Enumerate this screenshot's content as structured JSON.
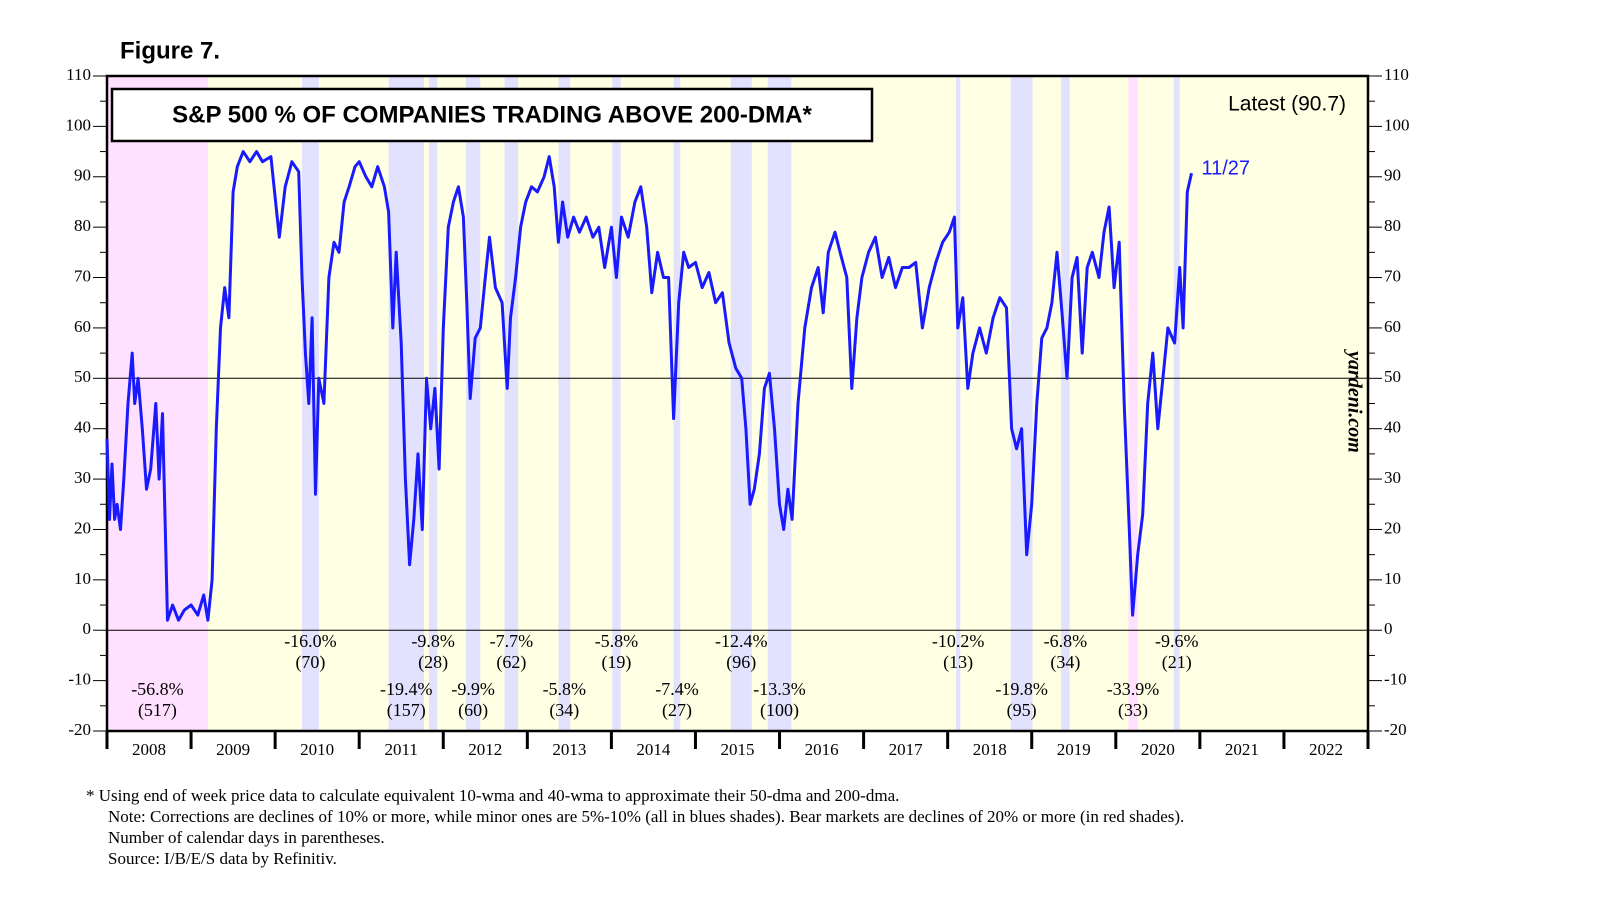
{
  "chart_data": {
    "type": "line",
    "figure_label": "Figure 7.",
    "title": "S&P 500 % OF COMPANIES TRADING ABOVE 200-DMA*",
    "latest_label": "Latest (90.7)",
    "end_label": "11/27",
    "watermark": "yardeni.com",
    "color": "#1a1aff",
    "xlim": [
      2008,
      2023
    ],
    "xticks": [
      2008,
      2009,
      2010,
      2011,
      2012,
      2013,
      2014,
      2015,
      2016,
      2017,
      2018,
      2019,
      2020,
      2021,
      2022
    ],
    "ylim": [
      -20,
      110
    ],
    "yticks": [
      -20,
      -10,
      0,
      10,
      20,
      30,
      40,
      50,
      60,
      70,
      80,
      90,
      100,
      110
    ],
    "hlines": [
      0,
      50
    ],
    "x": [
      2008.0,
      2008.03,
      2008.06,
      2008.09,
      2008.12,
      2008.16,
      2008.2,
      2008.25,
      2008.3,
      2008.33,
      2008.37,
      2008.42,
      2008.47,
      2008.52,
      2008.58,
      2008.62,
      2008.66,
      2008.72,
      2008.78,
      2008.85,
      2008.92,
      2009.0,
      2009.08,
      2009.15,
      2009.2,
      2009.25,
      2009.3,
      2009.35,
      2009.4,
      2009.45,
      2009.5,
      2009.55,
      2009.62,
      2009.7,
      2009.78,
      2009.85,
      2009.95,
      2010.05,
      2010.12,
      2010.2,
      2010.28,
      2010.32,
      2010.36,
      2010.4,
      2010.44,
      2010.48,
      2010.52,
      2010.58,
      2010.64,
      2010.7,
      2010.76,
      2010.82,
      2010.88,
      2010.95,
      2011.0,
      2011.08,
      2011.15,
      2011.22,
      2011.3,
      2011.35,
      2011.4,
      2011.44,
      2011.5,
      2011.55,
      2011.6,
      2011.65,
      2011.7,
      2011.75,
      2011.8,
      2011.85,
      2011.9,
      2011.95,
      2012.0,
      2012.06,
      2012.12,
      2012.18,
      2012.24,
      2012.28,
      2012.32,
      2012.38,
      2012.44,
      2012.5,
      2012.55,
      2012.62,
      2012.7,
      2012.76,
      2012.8,
      2012.86,
      2012.92,
      2012.98,
      2013.05,
      2013.12,
      2013.2,
      2013.26,
      2013.32,
      2013.37,
      2013.42,
      2013.48,
      2013.55,
      2013.62,
      2013.7,
      2013.78,
      2013.85,
      2013.92,
      2014.0,
      2014.06,
      2014.12,
      2014.2,
      2014.28,
      2014.35,
      2014.42,
      2014.48,
      2014.55,
      2014.62,
      2014.68,
      2014.74,
      2014.8,
      2014.86,
      2014.92,
      2015.0,
      2015.08,
      2015.16,
      2015.24,
      2015.32,
      2015.4,
      2015.48,
      2015.55,
      2015.6,
      2015.65,
      2015.7,
      2015.76,
      2015.82,
      2015.88,
      2015.94,
      2016.0,
      2016.05,
      2016.1,
      2016.15,
      2016.22,
      2016.3,
      2016.38,
      2016.46,
      2016.52,
      2016.58,
      2016.66,
      2016.72,
      2016.8,
      2016.86,
      2016.92,
      2016.98,
      2017.06,
      2017.14,
      2017.22,
      2017.3,
      2017.38,
      2017.46,
      2017.54,
      2017.62,
      2017.7,
      2017.78,
      2017.86,
      2017.94,
      2018.02,
      2018.08,
      2018.12,
      2018.18,
      2018.24,
      2018.3,
      2018.38,
      2018.46,
      2018.54,
      2018.62,
      2018.7,
      2018.76,
      2018.82,
      2018.88,
      2018.94,
      2019.0,
      2019.06,
      2019.12,
      2019.18,
      2019.24,
      2019.3,
      2019.36,
      2019.42,
      2019.48,
      2019.54,
      2019.6,
      2019.66,
      2019.72,
      2019.8,
      2019.86,
      2019.92,
      2019.98,
      2020.04,
      2020.1,
      2020.16,
      2020.2,
      2020.26,
      2020.32,
      2020.38,
      2020.44,
      2020.5,
      2020.56,
      2020.62,
      2020.7,
      2020.76,
      2020.8,
      2020.85,
      2020.9
    ],
    "values": [
      38,
      22,
      33,
      22,
      25,
      20,
      30,
      45,
      55,
      45,
      50,
      40,
      28,
      32,
      45,
      30,
      43,
      2,
      5,
      2,
      4,
      5,
      3,
      7,
      2,
      10,
      40,
      60,
      68,
      62,
      87,
      92,
      95,
      93,
      95,
      93,
      94,
      78,
      88,
      93,
      91,
      70,
      55,
      45,
      62,
      27,
      50,
      45,
      70,
      77,
      75,
      85,
      88,
      92,
      93,
      90,
      88,
      92,
      88,
      83,
      60,
      75,
      57,
      30,
      13,
      22,
      35,
      20,
      50,
      40,
      48,
      32,
      60,
      80,
      85,
      88,
      82,
      65,
      46,
      58,
      60,
      70,
      78,
      68,
      65,
      48,
      62,
      70,
      80,
      85,
      88,
      87,
      90,
      94,
      88,
      77,
      85,
      78,
      82,
      79,
      82,
      78,
      80,
      72,
      80,
      70,
      82,
      78,
      85,
      88,
      80,
      67,
      75,
      70,
      70,
      42,
      65,
      75,
      72,
      73,
      68,
      71,
      65,
      67,
      57,
      52,
      50,
      40,
      25,
      28,
      35,
      48,
      51,
      40,
      25,
      20,
      28,
      22,
      45,
      60,
      68,
      72,
      63,
      75,
      79,
      75,
      70,
      48,
      62,
      70,
      75,
      78,
      70,
      74,
      68,
      72,
      72,
      73,
      60,
      68,
      73,
      77,
      79,
      82,
      60,
      66,
      48,
      55,
      60,
      55,
      62,
      66,
      64,
      40,
      36,
      40,
      15,
      25,
      45,
      58,
      60,
      65,
      75,
      63,
      50,
      70,
      74,
      55,
      72,
      75,
      70,
      79,
      84,
      68,
      77,
      45,
      20,
      3,
      15,
      23,
      45,
      55,
      40,
      50,
      60,
      57,
      72,
      60,
      87,
      90.7
    ],
    "periods": [
      {
        "kind": "bear",
        "start": 2008.0,
        "end": 2009.2,
        "decline": "-56.8%",
        "days": "(517)"
      },
      {
        "kind": "correction",
        "start": 2010.32,
        "end": 2010.52,
        "decline": "-16.0%",
        "days": "(70)"
      },
      {
        "kind": "correction",
        "start": 2011.35,
        "end": 2011.77,
        "decline": "-19.4%",
        "days": "(157)"
      },
      {
        "kind": "correction",
        "start": 2011.83,
        "end": 2011.93,
        "decline": "-9.8%",
        "days": "(28)"
      },
      {
        "kind": "correction",
        "start": 2012.27,
        "end": 2012.44,
        "decline": "-9.9%",
        "days": "(60)"
      },
      {
        "kind": "correction",
        "start": 2012.73,
        "end": 2012.89,
        "decline": "-7.7%",
        "days": "(62)"
      },
      {
        "kind": "correction",
        "start": 2013.37,
        "end": 2013.51,
        "decline": "-5.8%",
        "days": "(34)"
      },
      {
        "kind": "correction",
        "start": 2014.01,
        "end": 2014.11,
        "decline": "-5.8%",
        "days": "(19)"
      },
      {
        "kind": "correction",
        "start": 2014.74,
        "end": 2014.82,
        "decline": "-7.4%",
        "days": "(27)"
      },
      {
        "kind": "correction",
        "start": 2015.42,
        "end": 2015.67,
        "decline": "-12.4%",
        "days": "(96)"
      },
      {
        "kind": "correction",
        "start": 2015.86,
        "end": 2016.14,
        "decline": "-13.3%",
        "days": "(100)"
      },
      {
        "kind": "correction",
        "start": 2018.1,
        "end": 2018.15,
        "decline": "-10.2%",
        "days": "(13)"
      },
      {
        "kind": "correction",
        "start": 2018.75,
        "end": 2019.01,
        "decline": "-19.8%",
        "days": "(95)"
      },
      {
        "kind": "correction",
        "start": 2019.35,
        "end": 2019.45,
        "decline": "-6.8%",
        "days": "(34)"
      },
      {
        "kind": "bear",
        "start": 2020.15,
        "end": 2020.26,
        "decline": "-33.9%",
        "days": "(33)"
      },
      {
        "kind": "correction",
        "start": 2020.69,
        "end": 2020.76,
        "decline": "-9.6%",
        "days": "(21)"
      }
    ],
    "notes": [
      "*  Using end of week price data to calculate equivalent 10-wma and 40-wma to approximate their 50-dma and 200-dma.",
      "Note: Corrections are declines of 10% or more, while minor ones are 5%-10% (all in blues shades). Bear markets are declines of 20% or more (in red shades).",
      "Number of calendar days in parentheses.",
      "Source: I/B/E/S data by Refinitiv."
    ]
  }
}
